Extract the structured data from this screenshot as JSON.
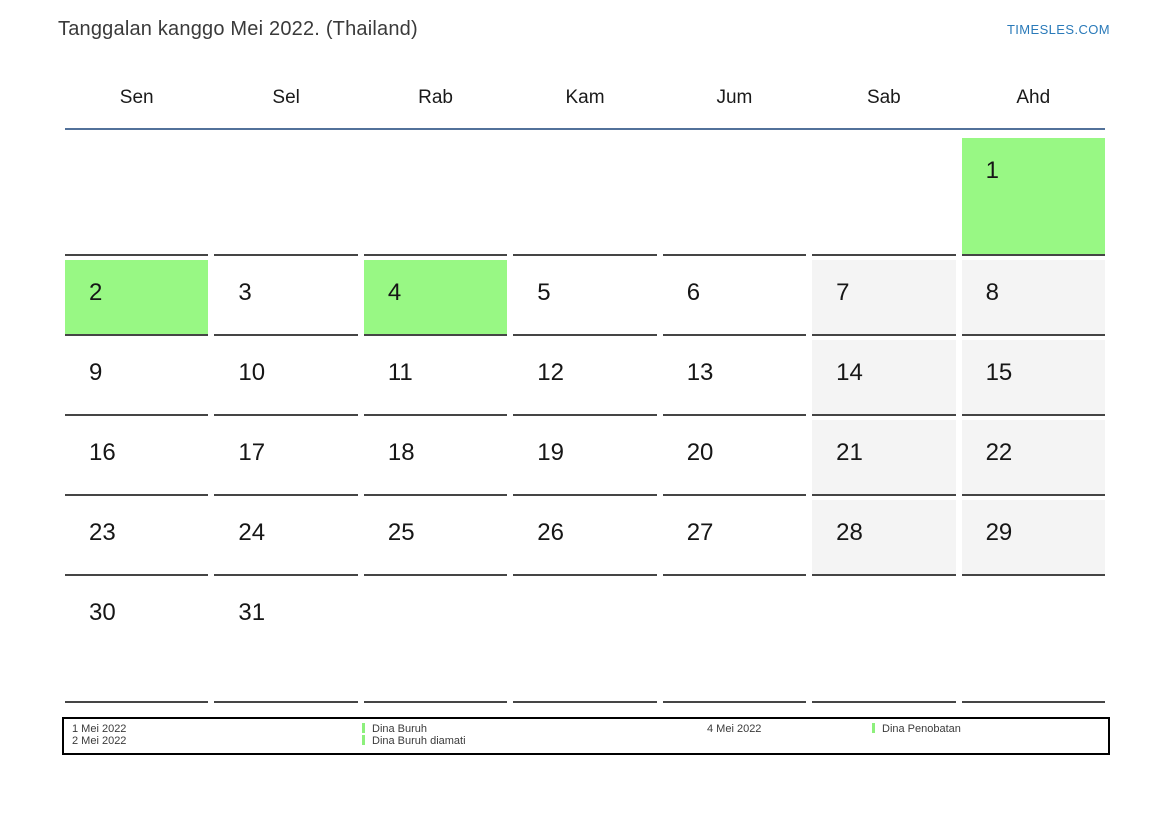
{
  "header": {
    "title": "Tanggalan kanggo Mei 2022. (Thailand)",
    "site": "TIMESLES.COM"
  },
  "calendar": {
    "day_headers": [
      "Sen",
      "Sel",
      "Rab",
      "Kam",
      "Jum",
      "Sab",
      "Ahd"
    ],
    "weeks": [
      [
        "",
        "",
        "",
        "",
        "",
        "",
        "1"
      ],
      [
        "2",
        "3",
        "4",
        "5",
        "6",
        "7",
        "8"
      ],
      [
        "9",
        "10",
        "11",
        "12",
        "13",
        "14",
        "15"
      ],
      [
        "16",
        "17",
        "18",
        "19",
        "20",
        "21",
        "22"
      ],
      [
        "23",
        "24",
        "25",
        "26",
        "27",
        "28",
        "29"
      ],
      [
        "30",
        "31",
        "",
        "",
        "",
        "",
        ""
      ]
    ],
    "holiday_days": [
      1,
      2,
      4
    ],
    "weekend_columns": [
      "Sab",
      "Ahd"
    ]
  },
  "legend": {
    "rows": [
      {
        "date": "1 Mei 2022",
        "label": "Dina Buruh"
      },
      {
        "date": "2 Mei 2022",
        "label": "Dina Buruh diamati"
      },
      {
        "date": "4 Mei 2022",
        "label": "Dina Penobatan"
      }
    ]
  },
  "colors": {
    "holiday_green": "#98f884",
    "weekend_gray": "#f4f4f4",
    "header_line": "#52719a",
    "link_blue": "#2a7ab9",
    "marker_green": "#8df07c"
  }
}
